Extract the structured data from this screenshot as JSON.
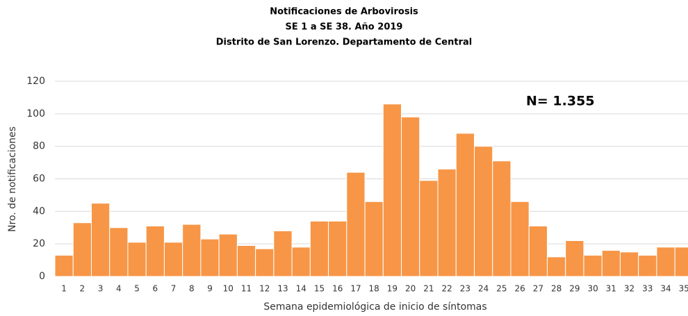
{
  "chart_data": {
    "type": "bar",
    "title": [
      "Notificaciones de Arbovirosis",
      "SE 1 a SE 38. Año 2019",
      "Distrito de San Lorenzo. Departamento de Central"
    ],
    "x_label": "Semana epidemiológica de inicio de síntomas",
    "y_label": "Nro. de notificaciones",
    "annotation": "N= 1.355",
    "categories": [
      "1",
      "2",
      "3",
      "4",
      "5",
      "6",
      "7",
      "8",
      "9",
      "10",
      "11",
      "12",
      "13",
      "14",
      "15",
      "16",
      "17",
      "18",
      "19",
      "20",
      "21",
      "22",
      "23",
      "24",
      "25",
      "26",
      "27",
      "28",
      "29",
      "30",
      "31",
      "32",
      "33",
      "34",
      "35"
    ],
    "values": [
      13,
      33,
      45,
      30,
      21,
      31,
      21,
      32,
      23,
      26,
      19,
      17,
      28,
      18,
      34,
      34,
      64,
      46,
      106,
      98,
      59,
      66,
      88,
      80,
      71,
      46,
      31,
      12,
      22,
      13,
      16,
      15,
      13,
      18,
      18
    ],
    "color": "#f79646",
    "ylim": [
      0,
      120
    ],
    "yticks": [
      0,
      20,
      40,
      60,
      80,
      100,
      120
    ],
    "grid": true
  }
}
